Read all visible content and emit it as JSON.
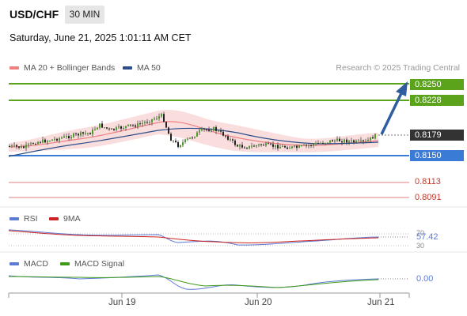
{
  "header": {
    "symbol": "USD/CHF",
    "timeframe": "30 MIN",
    "timestamp": "Saturday, June 21, 2025 1:01:11 AM CET"
  },
  "legend": {
    "ma20": "MA 20 + Bollinger Bands",
    "ma50": "MA 50",
    "credit": "Research © 2025 Trading Central",
    "colors": {
      "ma20": "#f08080",
      "ma50": "#2c4f8a",
      "bands": "#f8d0d0"
    }
  },
  "levels": {
    "resistance_2": "0.8250",
    "resistance_1": "0.8228",
    "current": "0.8179",
    "pivot": "0.8150",
    "support_1": "0.8113",
    "support_2": "0.8091",
    "colors": {
      "resistance": "#5aa31a",
      "current": "#333333",
      "pivot": "#3a7bd5",
      "support": "#d9534f"
    }
  },
  "rsi_panel": {
    "label": "RSI",
    "ma_label": "9MA",
    "value": "57.42",
    "tick_high": "70",
    "tick_low": "30"
  },
  "macd_panel": {
    "label": "MACD",
    "signal_label": "MACD Signal",
    "value": "0.00"
  },
  "x_axis": {
    "dates": [
      "Jun 19",
      "Jun 20",
      "Jun 21"
    ]
  }
}
